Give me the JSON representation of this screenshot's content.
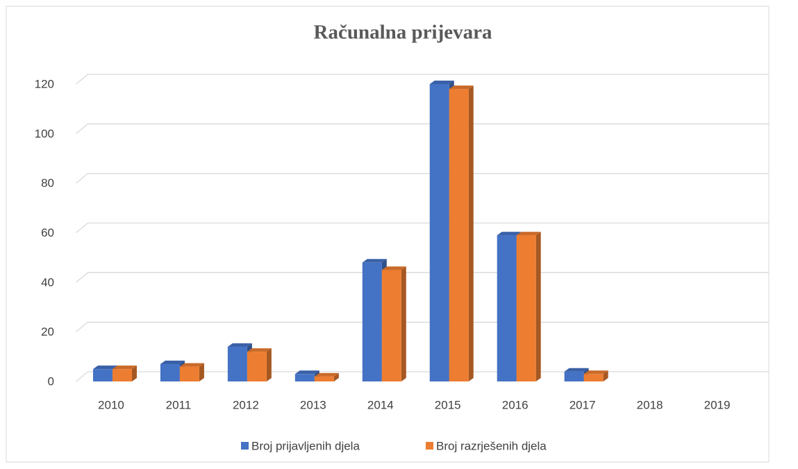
{
  "chart_data": {
    "type": "bar3d",
    "title": "Računalna prijevara",
    "categories": [
      "2010",
      "2011",
      "2012",
      "2013",
      "2014",
      "2015",
      "2016",
      "2017",
      "2018",
      "2019"
    ],
    "series": [
      {
        "name": "Broj prijavljenih djela",
        "color": "#4472c4",
        "values": [
          5,
          7,
          14,
          3,
          48,
          120,
          59,
          4,
          0,
          0
        ]
      },
      {
        "name": "Broj razrješenih djela",
        "color": "#ed7d31",
        "values": [
          5,
          6,
          12,
          2,
          45,
          118,
          59,
          3,
          0,
          0
        ]
      }
    ],
    "ylim": [
      0,
      120
    ],
    "yticks": [
      0,
      20,
      40,
      60,
      80,
      100,
      120
    ],
    "grid": true,
    "legend": "bottom"
  }
}
